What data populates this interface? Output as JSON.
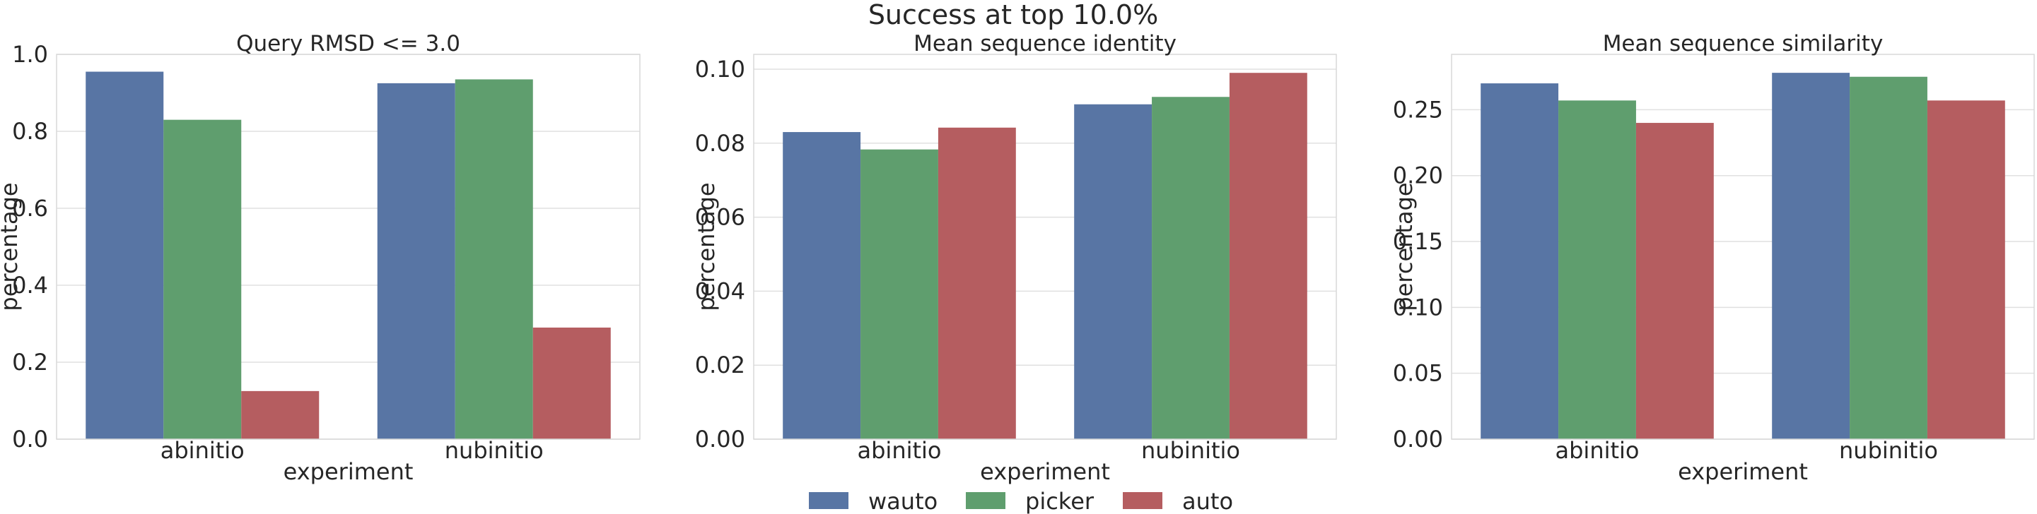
{
  "figure": {
    "suptitle": "Success at top 10.0%"
  },
  "legend": {
    "placement": "bottom-center",
    "entries": [
      {
        "label": "wauto",
        "color": "#5875a4"
      },
      {
        "label": "picker",
        "color": "#5f9e6e"
      },
      {
        "label": "auto",
        "color": "#b55d60"
      }
    ]
  },
  "chart_data": [
    {
      "type": "bar",
      "title": "Query RMSD <= 3.0",
      "xlabel": "experiment",
      "ylabel": "percentage",
      "categories": [
        "abinitio",
        "nubinitio"
      ],
      "ylim": [
        0,
        1.0
      ],
      "yticks": [
        0.0,
        0.2,
        0.4,
        0.6,
        0.8,
        1.0
      ],
      "ytick_labels": [
        "0.0",
        "0.2",
        "0.4",
        "0.6",
        "0.8",
        "1.0"
      ],
      "grid": true,
      "series": [
        {
          "name": "wauto",
          "values": [
            0.955,
            0.925
          ]
        },
        {
          "name": "picker",
          "values": [
            0.83,
            0.935
          ]
        },
        {
          "name": "auto",
          "values": [
            0.125,
            0.29
          ]
        }
      ]
    },
    {
      "type": "bar",
      "title": "Mean sequence identity",
      "xlabel": "experiment",
      "ylabel": "percentage",
      "categories": [
        "abinitio",
        "nubinitio"
      ],
      "ylim": [
        0,
        0.104
      ],
      "yticks": [
        0.0,
        0.02,
        0.04,
        0.06,
        0.08,
        0.1
      ],
      "ytick_labels": [
        "0.00",
        "0.02",
        "0.04",
        "0.06",
        "0.08",
        "0.10"
      ],
      "grid": true,
      "series": [
        {
          "name": "wauto",
          "values": [
            0.083,
            0.0905
          ]
        },
        {
          "name": "picker",
          "values": [
            0.0783,
            0.0925
          ]
        },
        {
          "name": "auto",
          "values": [
            0.0842,
            0.099
          ]
        }
      ]
    },
    {
      "type": "bar",
      "title": "Mean sequence similarity",
      "xlabel": "experiment",
      "ylabel": "percentage",
      "categories": [
        "abinitio",
        "nubinitio"
      ],
      "ylim": [
        0,
        0.292
      ],
      "yticks": [
        0.0,
        0.05,
        0.1,
        0.15,
        0.2,
        0.25
      ],
      "ytick_labels": [
        "0.00",
        "0.05",
        "0.10",
        "0.15",
        "0.20",
        "0.25"
      ],
      "grid": true,
      "series": [
        {
          "name": "wauto",
          "values": [
            0.27,
            0.278
          ]
        },
        {
          "name": "picker",
          "values": [
            0.257,
            0.275
          ]
        },
        {
          "name": "auto",
          "values": [
            0.24,
            0.257
          ]
        }
      ]
    }
  ]
}
